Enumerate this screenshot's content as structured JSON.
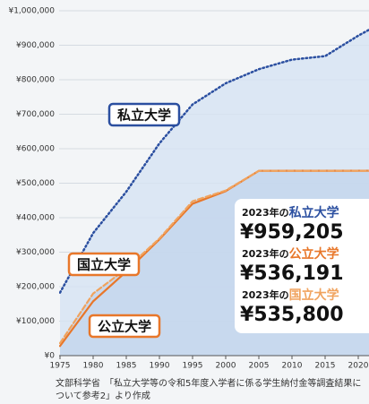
{
  "chart_data": {
    "type": "line",
    "x": [
      1975,
      1980,
      1985,
      1990,
      1995,
      2000,
      2005,
      2010,
      2015,
      2020,
      2023
    ],
    "series": [
      {
        "name": "私立大学",
        "color": "#2b4fa0",
        "dash": "dotted",
        "values": [
          182677,
          355156,
          475325,
          615486,
          728365,
          789659,
          830583,
          858265,
          868447,
          927705,
          959205
        ],
        "value_labels": [
          null,
          null,
          null,
          null,
          null,
          null,
          null,
          null,
          null,
          null,
          "¥959,205"
        ]
      },
      {
        "name": "公立大学",
        "color": "#e8772a",
        "dash": "solid",
        "values": [
          27847,
          157412,
          243725,
          337105,
          440471,
          477015,
          535882,
          536000,
          536100,
          536150,
          536191
        ],
        "value_labels": [
          null,
          null,
          null,
          null,
          null,
          null,
          null,
          null,
          null,
          null,
          "¥536,191"
        ]
      },
      {
        "name": "国立大学",
        "color": "#f0a35e",
        "dash": "dashed",
        "values": [
          36000,
          180000,
          252000,
          339600,
          447600,
          478800,
          535800,
          535800,
          535800,
          535800,
          535800
        ],
        "value_labels": [
          null,
          null,
          null,
          null,
          null,
          null,
          null,
          null,
          null,
          null,
          "¥535,800"
        ]
      }
    ],
    "summary_prefix": "2023年の",
    "xlim": [
      1975,
      2020
    ],
    "xticks": [
      1975,
      1980,
      1985,
      1990,
      1995,
      2000,
      2005,
      2010,
      2015,
      2020
    ],
    "ylim": [
      0,
      1000000
    ],
    "yticks": [
      {
        "value": 0,
        "label": "¥0"
      },
      {
        "value": 100000,
        "label": "¥100,000"
      },
      {
        "value": 200000,
        "label": "¥200,000"
      },
      {
        "value": 300000,
        "label": "¥300,000"
      },
      {
        "value": 400000,
        "label": "¥400,000"
      },
      {
        "value": 500000,
        "label": "¥500,000"
      },
      {
        "value": 600000,
        "label": "¥600,000"
      },
      {
        "value": 700000,
        "label": "¥700,000"
      },
      {
        "value": 800000,
        "label": "¥800,000"
      },
      {
        "value": 900000,
        "label": "¥900,000"
      },
      {
        "value": 1000000,
        "label": "¥1,000,000"
      }
    ],
    "grid": true,
    "source": [
      "文部科学省　「私立大学等の令和5年度入学者に係る学生納付金等調査結果に",
      "ついて参考2」より作成"
    ]
  }
}
